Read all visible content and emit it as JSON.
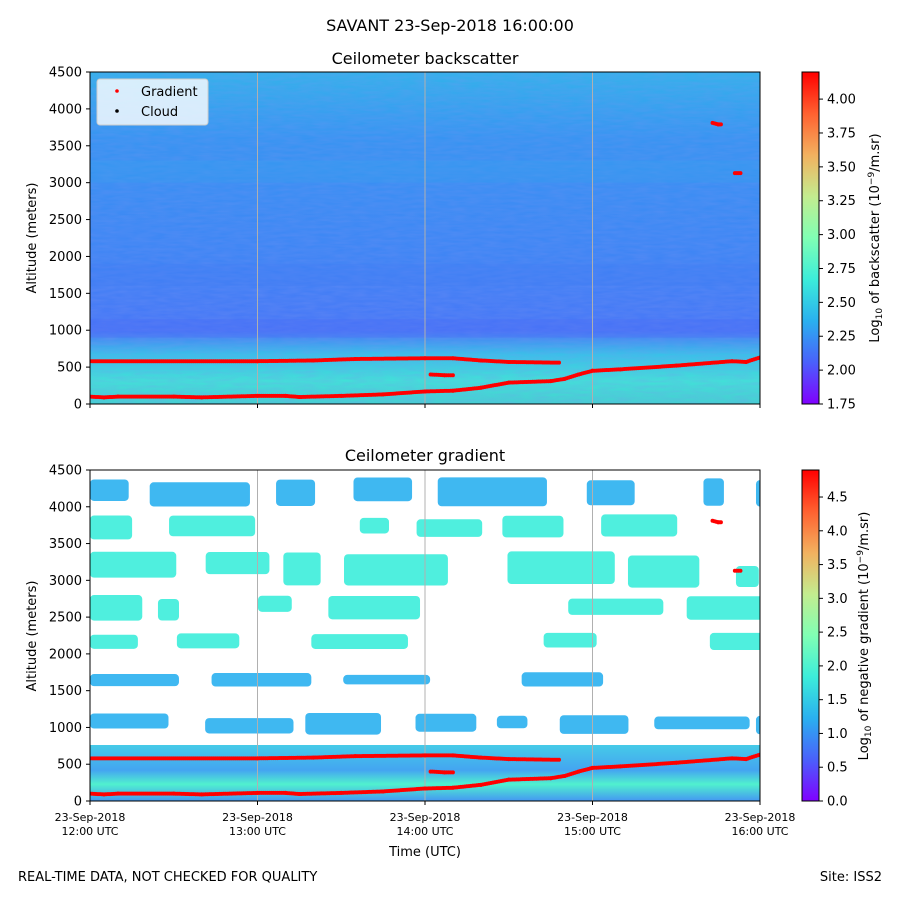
{
  "figure": {
    "suptitle": "SAVANT 23-Sep-2018 16:00:00",
    "footer_left": "REAL-TIME DATA, NOT CHECKED FOR QUALITY",
    "footer_right": "Site: ISS2"
  },
  "chart_data": [
    {
      "type": "heatmap",
      "title": "Ceilometer backscatter",
      "ylabel": "Altitude (meters)",
      "xlabel": "",
      "ylim": [
        0,
        4500
      ],
      "yticks": [
        0,
        500,
        1000,
        1500,
        2000,
        2500,
        3000,
        3500,
        4000,
        4500
      ],
      "xticks": [
        "12:00",
        "13:00",
        "14:00",
        "15:00",
        "16:00"
      ],
      "xtick_labels_shown": false,
      "grid": "vertical",
      "colormap": "rainbow",
      "colorbar": {
        "label_main": "Log",
        "label_sub": "10",
        "label_rest": " of backscatter (10",
        "label_exp": "−9",
        "label_end": "/m.sr)",
        "range": [
          1.75,
          4.2
        ],
        "ticks": [
          "1.75",
          "2.00",
          "2.25",
          "2.50",
          "2.75",
          "3.00",
          "3.25",
          "3.50",
          "3.75",
          "4.00"
        ]
      },
      "legend": {
        "placement": "top-left",
        "entries": [
          {
            "name": "Gradient",
            "color": "#ff0000"
          },
          {
            "name": "Cloud",
            "color": "#000000"
          }
        ]
      },
      "gradient_points": [
        {
          "series": "upper",
          "points": [
            [
              "12:00",
              580
            ],
            [
              "13:00",
              580
            ],
            [
              "13:20",
              590
            ],
            [
              "13:35",
              610
            ],
            [
              "14:00",
              620
            ],
            [
              "14:10",
              620
            ],
            [
              "14:20",
              590
            ],
            [
              "14:30",
              570
            ],
            [
              "14:48",
              560
            ]
          ]
        },
        {
          "series": "lower",
          "points": [
            [
              "12:00",
              100
            ],
            [
              "12:05",
              90
            ],
            [
              "12:10",
              100
            ],
            [
              "12:30",
              100
            ],
            [
              "12:40",
              90
            ],
            [
              "13:00",
              110
            ],
            [
              "13:10",
              110
            ],
            [
              "13:15",
              95
            ],
            [
              "13:30",
              110
            ],
            [
              "13:45",
              130
            ],
            [
              "14:00",
              170
            ],
            [
              "14:10",
              180
            ],
            [
              "14:20",
              220
            ],
            [
              "14:30",
              290
            ],
            [
              "14:45",
              310
            ],
            [
              "14:50",
              340
            ],
            [
              "14:55",
              400
            ],
            [
              "15:00",
              450
            ],
            [
              "15:10",
              470
            ],
            [
              "15:30",
              520
            ],
            [
              "15:50",
              580
            ],
            [
              "15:55",
              570
            ],
            [
              "16:00",
              630
            ]
          ]
        },
        {
          "series": "mid",
          "points": [
            [
              "14:02",
              400
            ],
            [
              "14:07",
              390
            ],
            [
              "14:10",
              390
            ]
          ]
        },
        {
          "series": "high1",
          "points": [
            [
              "15:43",
              3810
            ],
            [
              "15:45",
              3790
            ],
            [
              "15:46",
              3790
            ]
          ]
        },
        {
          "series": "high2",
          "points": [
            [
              "15:51",
              3130
            ],
            [
              "15:53",
              3130
            ]
          ]
        }
      ]
    },
    {
      "type": "heatmap",
      "title": "Ceilometer gradient",
      "ylabel": "Altitude (meters)",
      "xlabel": "Time (UTC)",
      "ylim": [
        0,
        4500
      ],
      "yticks": [
        0,
        500,
        1000,
        1500,
        2000,
        2500,
        3000,
        3500,
        4000,
        4500
      ],
      "xticks": [
        "12:00",
        "13:00",
        "14:00",
        "15:00",
        "16:00"
      ],
      "xtick_labels": [
        {
          "date": "23-Sep-2018",
          "time": "12:00 UTC"
        },
        {
          "date": "23-Sep-2018",
          "time": "13:00 UTC"
        },
        {
          "date": "23-Sep-2018",
          "time": "14:00 UTC"
        },
        {
          "date": "23-Sep-2018",
          "time": "15:00 UTC"
        },
        {
          "date": "23-Sep-2018",
          "time": "16:00 UTC"
        }
      ],
      "grid": "vertical",
      "colormap": "rainbow",
      "colorbar": {
        "label_main": "Log",
        "label_sub": "10",
        "label_rest": " of negative gradient (10",
        "label_exp": "−9",
        "label_end": "/m.sr)",
        "range": [
          0.0,
          4.9
        ],
        "ticks": [
          "0.0",
          "0.5",
          "1.0",
          "1.5",
          "2.0",
          "2.5",
          "3.0",
          "3.5",
          "4.0",
          "4.5"
        ]
      },
      "layers": [
        {
          "altitude": [
            900,
            1200
          ],
          "level": 0.9
        },
        {
          "altitude": [
            1550,
            1750
          ],
          "level": 1.1
        },
        {
          "altitude": [
            2050,
            2300
          ],
          "level": 1.5
        },
        {
          "altitude": [
            2450,
            2800
          ],
          "level": 1.5
        },
        {
          "altitude": [
            2900,
            3400
          ],
          "level": 1.6
        },
        {
          "altitude": [
            3550,
            3900
          ],
          "level": 1.4
        },
        {
          "altitude": [
            4000,
            4400
          ],
          "level": 1.2
        }
      ],
      "gradient_points_same_as_top": true
    }
  ],
  "colors": {
    "gradient_marker": "#ff0000",
    "grid": "#b0b0b0",
    "background_low": "#3a8ff5"
  }
}
